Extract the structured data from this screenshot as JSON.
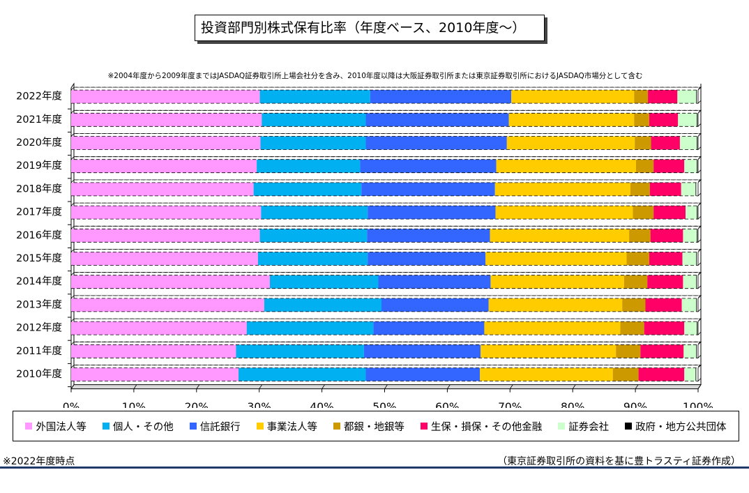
{
  "title": "投資部門別株式保有比率（年度ベース、2010年度～）",
  "note": "※2004年度から2009年度まではJASDAQ証券取引所上場会社分を含み、2010年度以降は大阪証券取引所または東京証券取引所におけるJASDAQ市場分として含む",
  "footnote": "※2022年度時点",
  "source": "（東京証券取引所の資料を基に豊トラスティ証券作成）",
  "chart_data": {
    "type": "bar",
    "orientation": "horizontal",
    "stacked": true,
    "title": "投資部門別株式保有比率（年度ベース、2010年度～）",
    "categories": [
      "2022年度",
      "2021年度",
      "2020年度",
      "2019年度",
      "2018年度",
      "2017年度",
      "2016年度",
      "2015年度",
      "2014年度",
      "2013年度",
      "2012年度",
      "2011年度",
      "2010年度"
    ],
    "xlim": [
      0,
      100
    ],
    "xticks": [
      "0%",
      "10%",
      "20%",
      "30%",
      "40%",
      "50%",
      "60%",
      "70%",
      "80%",
      "90%",
      "100%"
    ],
    "grid": false,
    "legend_position": "bottom",
    "series": [
      {
        "name": "外国法人等",
        "color": "#ff99ff",
        "values": [
          30.1,
          30.4,
          30.2,
          29.6,
          29.1,
          30.3,
          30.1,
          29.8,
          31.7,
          30.8,
          28.0,
          26.3,
          26.7
        ]
      },
      {
        "name": "個人・その他",
        "color": "#00b0f0",
        "values": [
          17.6,
          16.6,
          16.8,
          16.5,
          17.2,
          17.0,
          17.1,
          17.5,
          17.3,
          18.7,
          20.2,
          20.4,
          20.3
        ]
      },
      {
        "name": "信託銀行",
        "color": "#3366ff",
        "values": [
          22.5,
          22.8,
          22.5,
          21.7,
          21.3,
          20.4,
          19.6,
          18.8,
          17.9,
          17.1,
          17.7,
          18.6,
          18.2
        ]
      },
      {
        "name": "事業法人等",
        "color": "#ffcc00",
        "values": [
          19.6,
          20.0,
          20.4,
          22.3,
          21.6,
          21.9,
          22.2,
          22.5,
          21.3,
          21.3,
          21.7,
          21.6,
          21.2
        ]
      },
      {
        "name": "都銀・地銀等",
        "color": "#cc9900",
        "values": [
          2.2,
          2.4,
          2.6,
          2.8,
          3.1,
          3.3,
          3.4,
          3.6,
          3.7,
          3.7,
          3.8,
          3.9,
          4.1
        ]
      },
      {
        "name": "生保・損保・その他金融",
        "color": "#ff0066",
        "values": [
          4.7,
          4.6,
          4.6,
          4.9,
          5.0,
          5.1,
          5.2,
          5.3,
          5.7,
          5.8,
          6.4,
          6.9,
          7.3
        ]
      },
      {
        "name": "証券会社",
        "color": "#ccffcc",
        "values": [
          3.0,
          3.0,
          2.7,
          2.0,
          2.3,
          1.8,
          2.2,
          2.2,
          2.1,
          2.3,
          2.0,
          2.0,
          1.8
        ]
      },
      {
        "name": "政府・地方公共団体",
        "color": "#000000",
        "values": [
          0.1,
          0.1,
          0.1,
          0.1,
          0.1,
          0.1,
          0.1,
          0.1,
          0.1,
          0.1,
          0.1,
          0.1,
          0.1
        ]
      }
    ]
  }
}
